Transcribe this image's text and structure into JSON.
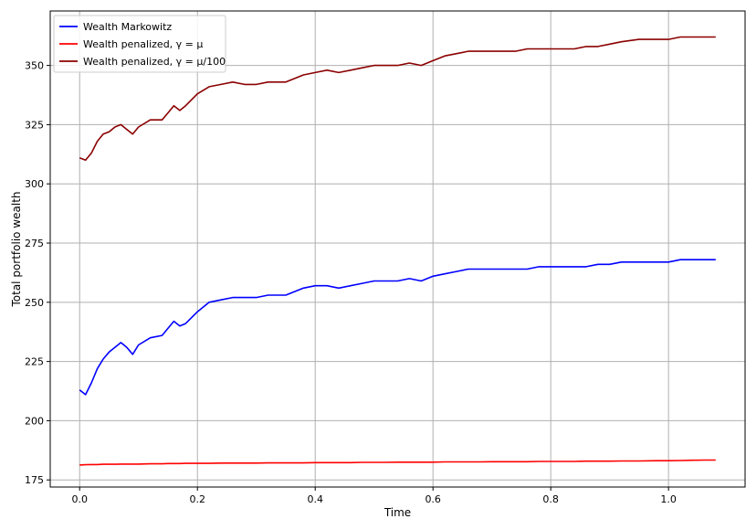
{
  "chart_data": {
    "type": "line",
    "xlabel": "Time",
    "ylabel": "Total portfolio wealth",
    "xlim": [
      -0.05,
      1.13
    ],
    "ylim": [
      172,
      373
    ],
    "grid": true,
    "legend_position": "top-left",
    "x_ticks": [
      0.0,
      0.2,
      0.4,
      0.6,
      0.8,
      1.0
    ],
    "x_tick_labels": [
      "0.0",
      "0.2",
      "0.4",
      "0.6",
      "0.8",
      "1.0"
    ],
    "y_ticks": [
      175,
      200,
      225,
      250,
      275,
      300,
      325,
      350
    ],
    "y_tick_labels": [
      "175",
      "200",
      "225",
      "250",
      "275",
      "300",
      "325",
      "350"
    ],
    "x": [
      0.0,
      0.01,
      0.02,
      0.03,
      0.04,
      0.05,
      0.06,
      0.07,
      0.08,
      0.09,
      0.1,
      0.12,
      0.14,
      0.15,
      0.16,
      0.17,
      0.18,
      0.2,
      0.22,
      0.24,
      0.26,
      0.28,
      0.3,
      0.32,
      0.35,
      0.38,
      0.4,
      0.42,
      0.44,
      0.46,
      0.48,
      0.5,
      0.52,
      0.54,
      0.56,
      0.58,
      0.6,
      0.62,
      0.64,
      0.66,
      0.68,
      0.7,
      0.72,
      0.74,
      0.76,
      0.78,
      0.8,
      0.82,
      0.84,
      0.86,
      0.88,
      0.9,
      0.92,
      0.95,
      0.98,
      1.0,
      1.02,
      1.04,
      1.06,
      1.08
    ],
    "series": [
      {
        "name": "Wealth Markowitz",
        "color": "#0000ff",
        "values": [
          213,
          211,
          216,
          222,
          226,
          229,
          231,
          233,
          231,
          228,
          232,
          235,
          236,
          239,
          242,
          240,
          241,
          246,
          250,
          251,
          252,
          252,
          252,
          253,
          253,
          256,
          257,
          257,
          256,
          257,
          258,
          259,
          259,
          259,
          260,
          259,
          261,
          262,
          263,
          264,
          264,
          264,
          264,
          264,
          264,
          265,
          265,
          265,
          265,
          265,
          266,
          266,
          267,
          267,
          267,
          267,
          268,
          268,
          268,
          268
        ]
      },
      {
        "name": "Wealth penalized, γ = μ",
        "color": "#ff0000",
        "values": [
          181.3,
          181.4,
          181.5,
          181.5,
          181.6,
          181.6,
          181.6,
          181.7,
          181.7,
          181.7,
          181.7,
          181.8,
          181.8,
          181.9,
          181.9,
          181.9,
          182.0,
          182.0,
          182.0,
          182.1,
          182.1,
          182.1,
          182.1,
          182.2,
          182.2,
          182.2,
          182.3,
          182.3,
          182.3,
          182.3,
          182.4,
          182.4,
          182.4,
          182.5,
          182.5,
          182.5,
          182.5,
          182.6,
          182.6,
          182.6,
          182.6,
          182.7,
          182.7,
          182.7,
          182.7,
          182.8,
          182.8,
          182.8,
          182.8,
          182.9,
          182.9,
          182.9,
          183.0,
          183.0,
          183.1,
          183.1,
          183.2,
          183.3,
          183.4,
          183.4
        ]
      },
      {
        "name": "Wealth penalized, γ = μ/100",
        "color": "#8b0000",
        "values": [
          311,
          310,
          313,
          318,
          321,
          322,
          324,
          325,
          323,
          321,
          324,
          327,
          327,
          330,
          333,
          331,
          333,
          338,
          341,
          342,
          343,
          342,
          342,
          343,
          343,
          346,
          347,
          348,
          347,
          348,
          349,
          350,
          350,
          350,
          351,
          350,
          352,
          354,
          355,
          356,
          356,
          356,
          356,
          356,
          357,
          357,
          357,
          357,
          357,
          358,
          358,
          359,
          360,
          361,
          361,
          361,
          362,
          362,
          362,
          362
        ]
      }
    ]
  }
}
